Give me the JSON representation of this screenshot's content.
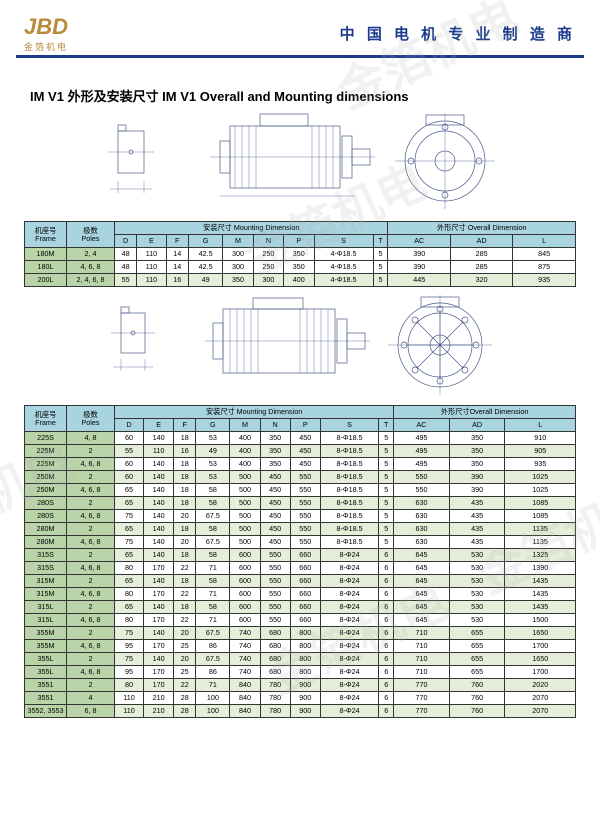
{
  "header": {
    "logo_main": "JBD",
    "logo_sub": "金箔机电",
    "slogan": "中 国 电 机 专 业 制 造 商"
  },
  "title": "IM V1 外形及安装尺寸 IM V1 Overall and Mounting dimensions",
  "watermark": "金箔机电",
  "table1": {
    "group_headers": [
      "机座号\nFrame",
      "极数\nPoles",
      "安装尺寸 Mounting Dimension",
      "外形尺寸 Overall Dimension"
    ],
    "columns": [
      "D",
      "E",
      "F",
      "G",
      "M",
      "N",
      "P",
      "S",
      "T",
      "AC",
      "AD",
      "L"
    ],
    "rows": [
      {
        "frame": "180M",
        "poles": "2, 4",
        "d": [
          "48",
          "110",
          "14",
          "42.5",
          "300",
          "250",
          "350",
          "4-Φ18.5",
          "5",
          "390",
          "285",
          "845"
        ]
      },
      {
        "frame": "180L",
        "poles": "4, 6, 8",
        "d": [
          "48",
          "110",
          "14",
          "42.5",
          "300",
          "250",
          "350",
          "4-Φ18.5",
          "5",
          "390",
          "285",
          "875"
        ]
      },
      {
        "frame": "200L",
        "poles": "2, 4, 6, 8",
        "d": [
          "55",
          "110",
          "16",
          "49",
          "350",
          "300",
          "400",
          "4-Φ18.5",
          "5",
          "445",
          "320",
          "935"
        ]
      }
    ]
  },
  "table2": {
    "group_headers": [
      "机座号\nFrame",
      "极数\nPoles",
      "安装尺寸 Mounting Dimension",
      "外形尺寸Overall Dimension"
    ],
    "columns": [
      "D",
      "E",
      "F",
      "G",
      "M",
      "N",
      "P",
      "S",
      "T",
      "AC",
      "AD",
      "L"
    ],
    "rows": [
      {
        "frame": "225S",
        "poles": "4, 8",
        "d": [
          "60",
          "140",
          "18",
          "53",
          "400",
          "350",
          "450",
          "8-Φ18.5",
          "5",
          "495",
          "350",
          "910"
        ]
      },
      {
        "frame": "225M",
        "poles": "2",
        "d": [
          "55",
          "110",
          "16",
          "49",
          "400",
          "350",
          "450",
          "8-Φ18.5",
          "5",
          "495",
          "350",
          "905"
        ]
      },
      {
        "frame": "225M",
        "poles": "4, 6, 8",
        "d": [
          "60",
          "140",
          "18",
          "53",
          "400",
          "350",
          "450",
          "8-Φ18.5",
          "5",
          "495",
          "350",
          "935"
        ]
      },
      {
        "frame": "250M",
        "poles": "2",
        "d": [
          "60",
          "140",
          "18",
          "53",
          "500",
          "450",
          "550",
          "8-Φ18.5",
          "5",
          "550",
          "390",
          "1025"
        ]
      },
      {
        "frame": "250M",
        "poles": "4, 6, 8",
        "d": [
          "65",
          "140",
          "18",
          "58",
          "500",
          "450",
          "550",
          "8-Φ18.5",
          "5",
          "550",
          "390",
          "1025"
        ]
      },
      {
        "frame": "280S",
        "poles": "2",
        "d": [
          "65",
          "140",
          "18",
          "58",
          "500",
          "450",
          "550",
          "8-Φ18.5",
          "5",
          "630",
          "435",
          "1085"
        ]
      },
      {
        "frame": "280S",
        "poles": "4, 6, 8",
        "d": [
          "75",
          "140",
          "20",
          "67.5",
          "500",
          "450",
          "550",
          "8-Φ18.5",
          "5",
          "630",
          "435",
          "1085"
        ]
      },
      {
        "frame": "280M",
        "poles": "2",
        "d": [
          "65",
          "140",
          "18",
          "58",
          "500",
          "450",
          "550",
          "8-Φ18.5",
          "5",
          "630",
          "435",
          "1135"
        ]
      },
      {
        "frame": "280M",
        "poles": "4, 6, 8",
        "d": [
          "75",
          "140",
          "20",
          "67.5",
          "500",
          "450",
          "550",
          "8-Φ18.5",
          "5",
          "630",
          "435",
          "1135"
        ]
      },
      {
        "frame": "315S",
        "poles": "2",
        "d": [
          "65",
          "140",
          "18",
          "58",
          "600",
          "550",
          "660",
          "8-Φ24",
          "6",
          "645",
          "530",
          "1325"
        ]
      },
      {
        "frame": "315S",
        "poles": "4, 6, 8",
        "d": [
          "80",
          "170",
          "22",
          "71",
          "600",
          "550",
          "660",
          "8-Φ24",
          "6",
          "645",
          "530",
          "1390"
        ]
      },
      {
        "frame": "315M",
        "poles": "2",
        "d": [
          "65",
          "140",
          "18",
          "58",
          "600",
          "550",
          "660",
          "8-Φ24",
          "6",
          "645",
          "530",
          "1435"
        ]
      },
      {
        "frame": "315M",
        "poles": "4, 6, 8",
        "d": [
          "80",
          "170",
          "22",
          "71",
          "600",
          "550",
          "660",
          "8-Φ24",
          "6",
          "645",
          "530",
          "1435"
        ]
      },
      {
        "frame": "315L",
        "poles": "2",
        "d": [
          "65",
          "140",
          "18",
          "58",
          "600",
          "550",
          "660",
          "8-Φ24",
          "6",
          "645",
          "530",
          "1435"
        ]
      },
      {
        "frame": "315L",
        "poles": "4, 6, 8",
        "d": [
          "80",
          "170",
          "22",
          "71",
          "600",
          "550",
          "660",
          "8-Φ24",
          "6",
          "645",
          "530",
          "1500"
        ]
      },
      {
        "frame": "355M",
        "poles": "2",
        "d": [
          "75",
          "140",
          "20",
          "67.5",
          "740",
          "680",
          "800",
          "8-Φ24",
          "6",
          "710",
          "655",
          "1650"
        ]
      },
      {
        "frame": "355M",
        "poles": "4, 6, 8",
        "d": [
          "95",
          "170",
          "25",
          "86",
          "740",
          "680",
          "800",
          "8-Φ24",
          "6",
          "710",
          "655",
          "1700"
        ]
      },
      {
        "frame": "355L",
        "poles": "2",
        "d": [
          "75",
          "140",
          "20",
          "67.5",
          "740",
          "680",
          "800",
          "8-Φ24",
          "6",
          "710",
          "655",
          "1650"
        ]
      },
      {
        "frame": "355L",
        "poles": "4, 6, 8",
        "d": [
          "95",
          "170",
          "25",
          "86",
          "740",
          "680",
          "800",
          "8-Φ24",
          "6",
          "710",
          "655",
          "1700"
        ]
      },
      {
        "frame": "3551",
        "poles": "2",
        "d": [
          "80",
          "170",
          "22",
          "71",
          "840",
          "780",
          "900",
          "8-Φ24",
          "6",
          "770",
          "760",
          "2020"
        ]
      },
      {
        "frame": "3551",
        "poles": "4",
        "d": [
          "110",
          "210",
          "28",
          "100",
          "840",
          "780",
          "900",
          "8-Φ24",
          "6",
          "770",
          "760",
          "2070"
        ]
      },
      {
        "frame": "3552, 3553",
        "poles": "6, 8",
        "d": [
          "110",
          "210",
          "28",
          "100",
          "840",
          "780",
          "900",
          "8-Φ24",
          "6",
          "770",
          "760",
          "2070"
        ]
      }
    ]
  },
  "colors": {
    "header_blue": "#a8d4e0",
    "header_green": "#b8d4a8",
    "row_alt": "#e4eed8",
    "border": "#333333",
    "diagram_stroke": "#4a5a8a"
  }
}
